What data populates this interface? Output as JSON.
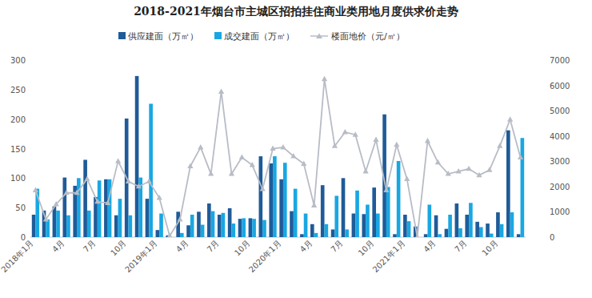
{
  "chart_data": {
    "type": "bar",
    "title": "2018-2021年烟台市主城区招拍挂住商业类用地月度供求价走势",
    "categories": [
      "2018年1月",
      null,
      null,
      "4月",
      null,
      null,
      "7月",
      null,
      null,
      "10月",
      null,
      null,
      "2019年1月",
      null,
      null,
      "4月",
      null,
      null,
      "7月",
      null,
      null,
      "10月",
      null,
      null,
      "2020年1月",
      null,
      null,
      "4月",
      null,
      null,
      "7月",
      null,
      null,
      "10月",
      null,
      null,
      "2021年1月",
      null,
      null,
      "4月",
      null,
      null,
      "7月",
      null,
      null,
      "10月",
      null,
      null
    ],
    "series": [
      {
        "name": "供应建面（万㎡）",
        "type": "bar",
        "color": "#1f5b98",
        "values": [
          38,
          45,
          52,
          101,
          87,
          131,
          68,
          98,
          37,
          201,
          273,
          65,
          12,
          3,
          43,
          20,
          43,
          57,
          38,
          49,
          31,
          32,
          137,
          125,
          98,
          44,
          5,
          22,
          88,
          13,
          100,
          40,
          39,
          84,
          208,
          5,
          38,
          18,
          5,
          37,
          14,
          57,
          38,
          26,
          23,
          42,
          181,
          5
        ]
      },
      {
        "name": "成交建面（万㎡）",
        "type": "bar",
        "color": "#19a7e2",
        "values": [
          82,
          30,
          45,
          37,
          100,
          45,
          96,
          98,
          65,
          37,
          101,
          226,
          40,
          0,
          7,
          38,
          21,
          44,
          41,
          23,
          32,
          31,
          29,
          137,
          126,
          82,
          40,
          7,
          22,
          70,
          13,
          79,
          55,
          40,
          85,
          129,
          27,
          0,
          55,
          5,
          38,
          15,
          58,
          17,
          6,
          22,
          42,
          168
        ]
      },
      {
        "name": "楼面地价（元/㎡）",
        "type": "line",
        "axis": "y2",
        "color": "#b8bcc6",
        "marker": "triangle",
        "values": [
          1850,
          700,
          1300,
          1750,
          1750,
          2300,
          1400,
          1350,
          3000,
          2200,
          2000,
          2200,
          1550,
          50,
          700,
          2800,
          3550,
          2500,
          5750,
          2500,
          3150,
          2850,
          1900,
          3500,
          3550,
          3200,
          2900,
          1250,
          6250,
          3600,
          4150,
          4050,
          2600,
          3850,
          1850,
          3650,
          2300,
          0,
          3800,
          2950,
          2500,
          2600,
          2700,
          2450,
          2650,
          3600,
          4650,
          3150
        ]
      }
    ],
    "ylim": [
      0,
      300
    ],
    "yticks": [
      0,
      50,
      100,
      150,
      200,
      250,
      300
    ],
    "y2lim": [
      0,
      7000
    ],
    "y2ticks": [
      0,
      1000,
      2000,
      3000,
      4000,
      5000,
      6000,
      7000
    ],
    "grid": false,
    "legend": "top"
  }
}
